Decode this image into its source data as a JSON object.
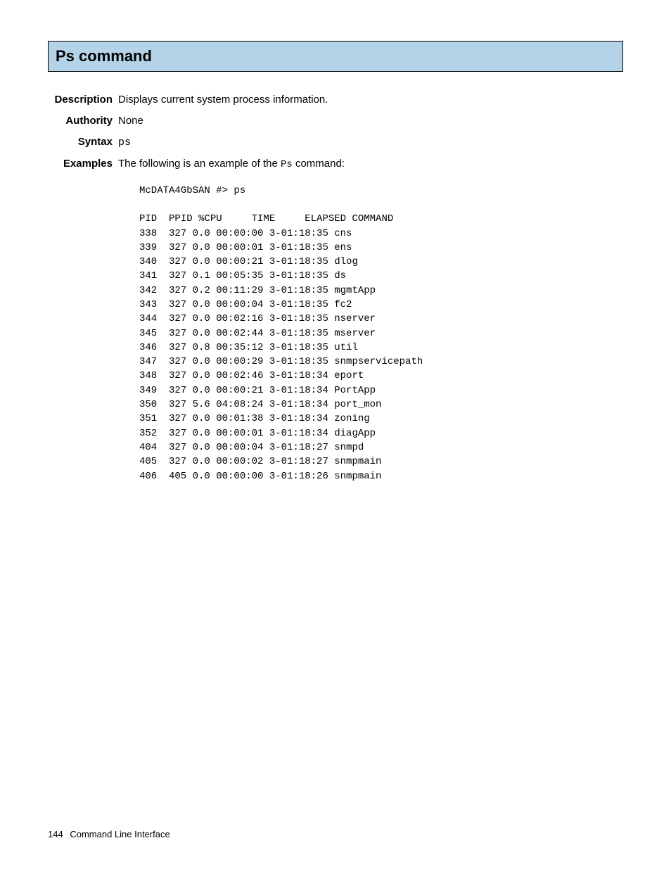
{
  "heading": "Ps command",
  "labels": {
    "description": "Description",
    "authority": "Authority",
    "syntax": "Syntax",
    "examples": "Examples"
  },
  "description": "Displays current system process information.",
  "authority": "None",
  "syntax": "ps",
  "examples_intro_pre": "The following is an example of the ",
  "examples_intro_cmd": "Ps",
  "examples_intro_post": " command:",
  "prompt": "McDATA4GbSAN #> ps",
  "ps_header": "PID  PPID %CPU     TIME     ELAPSED COMMAND",
  "ps_rows": [
    {
      "pid": "338",
      "ppid": "327",
      "cpu": "0.0",
      "time": "00:00:00",
      "elapsed": "3-01:18:35",
      "command": "cns"
    },
    {
      "pid": "339",
      "ppid": "327",
      "cpu": "0.0",
      "time": "00:00:01",
      "elapsed": "3-01:18:35",
      "command": "ens"
    },
    {
      "pid": "340",
      "ppid": "327",
      "cpu": "0.0",
      "time": "00:00:21",
      "elapsed": "3-01:18:35",
      "command": "dlog"
    },
    {
      "pid": "341",
      "ppid": "327",
      "cpu": "0.1",
      "time": "00:05:35",
      "elapsed": "3-01:18:35",
      "command": "ds"
    },
    {
      "pid": "342",
      "ppid": "327",
      "cpu": "0.2",
      "time": "00:11:29",
      "elapsed": "3-01:18:35",
      "command": "mgmtApp"
    },
    {
      "pid": "343",
      "ppid": "327",
      "cpu": "0.0",
      "time": "00:00:04",
      "elapsed": "3-01:18:35",
      "command": "fc2"
    },
    {
      "pid": "344",
      "ppid": "327",
      "cpu": "0.0",
      "time": "00:02:16",
      "elapsed": "3-01:18:35",
      "command": "nserver"
    },
    {
      "pid": "345",
      "ppid": "327",
      "cpu": "0.0",
      "time": "00:02:44",
      "elapsed": "3-01:18:35",
      "command": "mserver"
    },
    {
      "pid": "346",
      "ppid": "327",
      "cpu": "0.8",
      "time": "00:35:12",
      "elapsed": "3-01:18:35",
      "command": "util"
    },
    {
      "pid": "347",
      "ppid": "327",
      "cpu": "0.0",
      "time": "00:00:29",
      "elapsed": "3-01:18:35",
      "command": "snmpservicepath"
    },
    {
      "pid": "348",
      "ppid": "327",
      "cpu": "0.0",
      "time": "00:02:46",
      "elapsed": "3-01:18:34",
      "command": "eport"
    },
    {
      "pid": "349",
      "ppid": "327",
      "cpu": "0.0",
      "time": "00:00:21",
      "elapsed": "3-01:18:34",
      "command": "PortApp"
    },
    {
      "pid": "350",
      "ppid": "327",
      "cpu": "5.6",
      "time": "04:08:24",
      "elapsed": "3-01:18:34",
      "command": "port_mon"
    },
    {
      "pid": "351",
      "ppid": "327",
      "cpu": "0.0",
      "time": "00:01:38",
      "elapsed": "3-01:18:34",
      "command": "zoning"
    },
    {
      "pid": "352",
      "ppid": "327",
      "cpu": "0.0",
      "time": "00:00:01",
      "elapsed": "3-01:18:34",
      "command": "diagApp"
    },
    {
      "pid": "404",
      "ppid": "327",
      "cpu": "0.0",
      "time": "00:00:04",
      "elapsed": "3-01:18:27",
      "command": "snmpd"
    },
    {
      "pid": "405",
      "ppid": "327",
      "cpu": "0.0",
      "time": "00:00:02",
      "elapsed": "3-01:18:27",
      "command": "snmpmain"
    },
    {
      "pid": "406",
      "ppid": "405",
      "cpu": "0.0",
      "time": "00:00:00",
      "elapsed": "3-01:18:26",
      "command": "snmpmain"
    }
  ],
  "footer": {
    "page": "144",
    "title": "Command Line Interface"
  }
}
